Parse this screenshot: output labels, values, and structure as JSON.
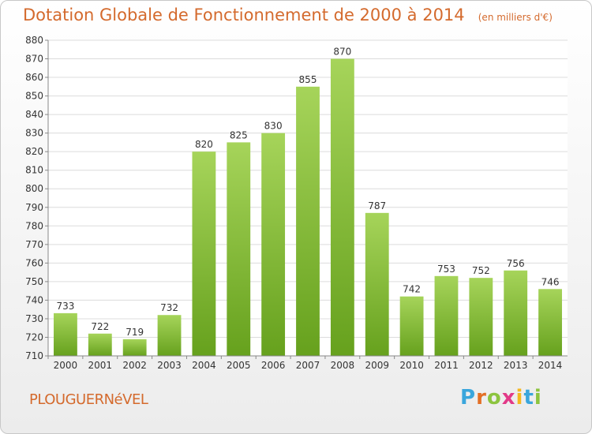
{
  "header": {
    "title": "Dotation Globale de Fonctionnement de 2000 à 2014",
    "unit": "(en milliers d'€)"
  },
  "footer": {
    "commune": "PLOUGUERNéVEL",
    "logo_letters": [
      "P",
      "r",
      "o",
      "x",
      "i",
      "t",
      "i"
    ],
    "logo_colors": [
      "#3aa6dc",
      "#e36f25",
      "#8cc43f",
      "#e23a88",
      "#f5b820",
      "#3aa6dc",
      "#8cc43f"
    ]
  },
  "chart_data": {
    "type": "bar",
    "title": "Dotation Globale de Fonctionnement de 2000 à 2014",
    "categories": [
      "2000",
      "2001",
      "2002",
      "2003",
      "2004",
      "2005",
      "2006",
      "2007",
      "2008",
      "2009",
      "2010",
      "2011",
      "2012",
      "2013",
      "2014"
    ],
    "values": [
      733,
      722,
      719,
      732,
      820,
      825,
      830,
      855,
      870,
      787,
      742,
      753,
      752,
      756,
      746
    ],
    "ylim": [
      710,
      880
    ],
    "yticks": [
      710,
      720,
      730,
      740,
      750,
      760,
      770,
      780,
      790,
      800,
      810,
      820,
      830,
      840,
      850,
      860,
      870,
      880
    ],
    "grid": true,
    "bar_color": "#7ab52c"
  }
}
